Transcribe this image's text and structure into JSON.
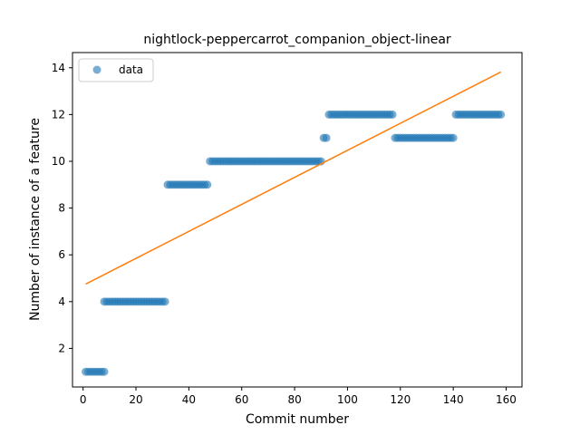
{
  "chart_data": {
    "type": "scatter",
    "title": "nightlock-peppercarrot_companion_object-linear",
    "xlabel": "Commit number",
    "ylabel": "Number of instance of a feature",
    "xlim": [
      -4,
      166
    ],
    "ylim": [
      0.35,
      14.65
    ],
    "xticks": [
      0,
      20,
      40,
      60,
      80,
      100,
      120,
      140,
      160
    ],
    "yticks": [
      2,
      4,
      6,
      8,
      10,
      12,
      14
    ],
    "grid": false,
    "legend": {
      "placement": "top-left",
      "entries": [
        "data"
      ]
    },
    "colors": {
      "data": "#1f77b4",
      "fit": "#ff7f0e"
    },
    "segments": [
      {
        "x_start": 1,
        "x_end": 8,
        "y": 1
      },
      {
        "x_start": 8,
        "x_end": 31,
        "y": 4
      },
      {
        "x_start": 32,
        "x_end": 47,
        "y": 9
      },
      {
        "x_start": 48,
        "x_end": 90,
        "y": 10
      },
      {
        "x_start": 91,
        "x_end": 92,
        "y": 11
      },
      {
        "x_start": 93,
        "x_end": 117,
        "y": 12
      },
      {
        "x_start": 118,
        "x_end": 140,
        "y": 11
      },
      {
        "x_start": 141,
        "x_end": 158,
        "y": 12
      }
    ],
    "fit_line": {
      "x": [
        1,
        158
      ],
      "y": [
        4.75,
        13.82
      ]
    }
  }
}
